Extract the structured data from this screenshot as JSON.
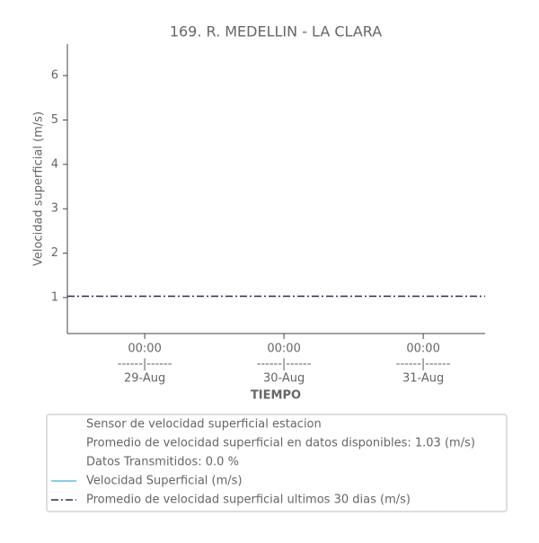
{
  "chart_data": {
    "type": "line",
    "title": "169. R. MEDELLIN - LA CLARA",
    "ylabel": "Velocidad superficial (m/s)",
    "xlabel": "TIEMPO",
    "ylim": [
      0.19,
      6.71
    ],
    "yticks": [
      1,
      2,
      3,
      4,
      5,
      6
    ],
    "xlim": [
      "28-Aug 10:40",
      "31-Aug 10:40"
    ],
    "xticks": [
      {
        "value": "29-Aug 00:00",
        "label": "00:00"
      },
      {
        "value": "30-Aug 00:00",
        "label": "00:00"
      },
      {
        "value": "31-Aug 00:00",
        "label": "00:00"
      }
    ],
    "xtick_separators": [
      "------|------",
      "------|------",
      "------|------"
    ],
    "xtick_dates": [
      "29-Aug",
      "30-Aug",
      "31-Aug"
    ],
    "legend_texts": [
      "Sensor de velocidad superficial estacion",
      "Promedio de velocidad superficial en datos disponibles: 1.03 (m/s)",
      "Datos Transmitidos: 0.0 %"
    ],
    "series": [
      {
        "name": "Velocidad Superficial (m/s)",
        "color": "#5bc0de",
        "dash": "solid",
        "x": [],
        "values": []
      },
      {
        "name": "Promedio de velocidad superficial ultimos 30 dias (m/s)",
        "color": "#2b2b4a",
        "dash": "dashdot",
        "x": [
          "28-Aug 10:40",
          "31-Aug 10:40"
        ],
        "values": [
          1.03,
          1.03
        ]
      }
    ]
  }
}
